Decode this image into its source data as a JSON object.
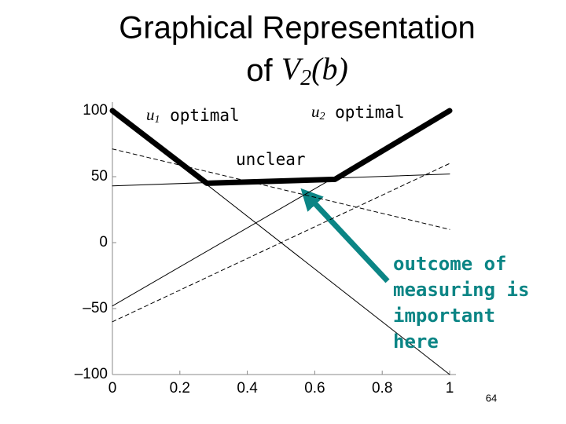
{
  "chart_data": {
    "type": "line",
    "title": [
      "Graphical Representation",
      "of "
    ],
    "title_math": [
      "V",
      "2",
      "(b)"
    ],
    "xlim": [
      0,
      1
    ],
    "xticks": [
      0,
      0.2,
      0.4,
      0.6,
      0.8,
      1
    ],
    "ylim": [
      -100,
      100
    ],
    "yticks": [
      100,
      50,
      0,
      {
        "value": -50,
        "label": "–50"
      },
      {
        "value": -100,
        "label": "–100"
      }
    ],
    "series": [
      {
        "x": [
          0,
          0.28,
          0.66,
          1
        ],
        "values": [
          100,
          45,
          48,
          100
        ],
        "color": "#000000",
        "style": "thick"
      },
      {
        "x": [
          0,
          1
        ],
        "values": [
          43,
          52
        ],
        "color": "#000000",
        "style": "solid"
      },
      {
        "x": [
          0,
          1
        ],
        "values": [
          100,
          -100
        ],
        "color": "#000000",
        "style": "solid"
      },
      {
        "x": [
          0,
          1
        ],
        "values": [
          -48,
          100
        ],
        "color": "#000000",
        "style": "solid"
      },
      {
        "x": [
          0,
          1
        ],
        "values": [
          71,
          10
        ],
        "color": "#000000",
        "style": "dashed"
      },
      {
        "x": [
          0,
          1
        ],
        "values": [
          -60,
          60
        ],
        "color": "#000000",
        "style": "dashed"
      }
    ],
    "annotations": [
      {
        "math": "u",
        "sub": "1",
        "text": " optimal"
      },
      {
        "math": "u",
        "sub": "2",
        "text": " optimal"
      },
      {
        "text": "unclear"
      },
      {
        "lines": [
          "outcome of",
          "measuring is",
          "important",
          "here"
        ]
      }
    ],
    "page_number": "64"
  }
}
